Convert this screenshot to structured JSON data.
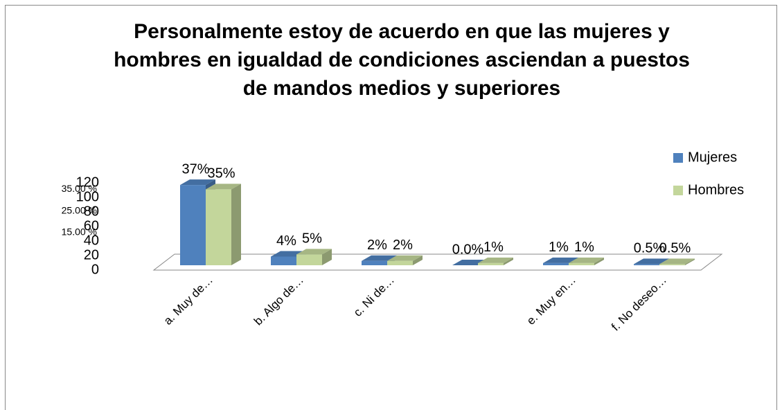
{
  "chart_data": {
    "type": "bar3d",
    "title": [
      "Personalmente estoy de acuerdo en que las mujeres y",
      "hombres en igualdad de condiciones asciendan a puestos",
      "de mandos medios y superiores"
    ],
    "categories": [
      "a. Muy de…",
      "b. Algo de…",
      "c. Ni de…",
      null,
      "e. Muy en…",
      "f. No deseo…"
    ],
    "series": [
      {
        "name": "Mujeres",
        "color": "#4f81bd",
        "axis": "y2",
        "values": [
          37,
          4,
          2,
          0.0,
          1,
          0.5
        ],
        "value_labels": [
          "37%",
          "4%",
          "2%",
          "0.0%",
          "1%",
          "0.5%"
        ]
      },
      {
        "name": "Hombres",
        "color": "#c3d69b",
        "axis": "y2",
        "values": [
          35,
          5,
          2,
          1,
          1,
          0.5
        ],
        "value_labels": [
          "35%",
          "5%",
          "2%",
          "1%",
          "1%",
          "0.5%"
        ]
      }
    ],
    "ylim": [
      0,
      120
    ],
    "yticks": [
      0,
      20,
      40,
      60,
      80,
      100,
      120
    ],
    "y2lim": [
      0,
      38
    ],
    "y2ticks": [
      {
        "value": 15,
        "label": "15.00 %"
      },
      {
        "value": 25,
        "label": "25.00 %"
      },
      {
        "value": 35,
        "label": "35.00 %"
      }
    ],
    "legend": "right"
  }
}
